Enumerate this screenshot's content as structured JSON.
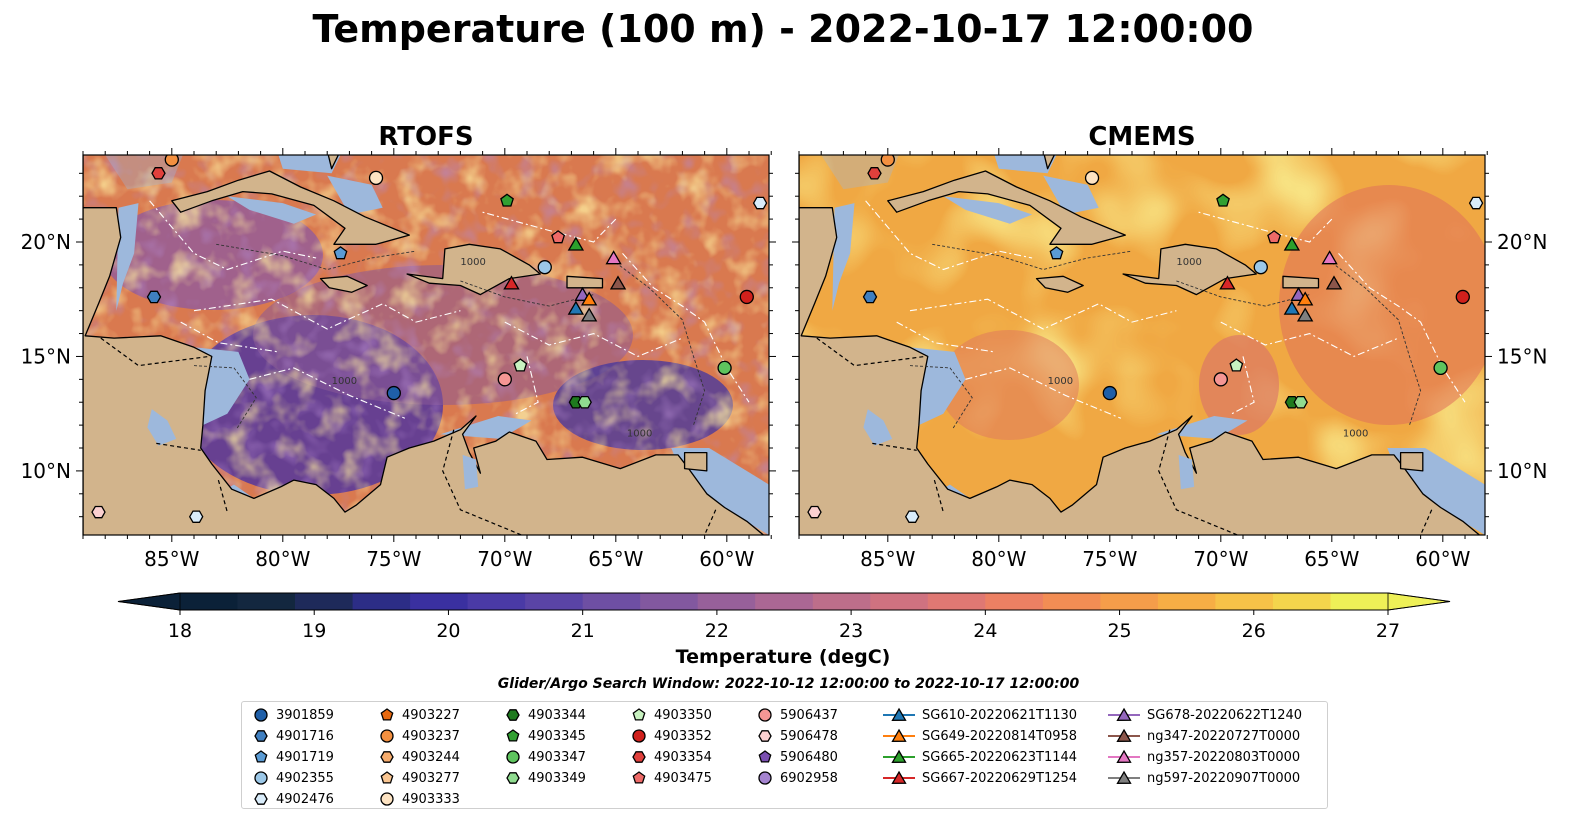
{
  "figure": {
    "title": "Temperature (100 m) - 2022-10-17 12:00:00",
    "panels": [
      {
        "title": "RTOFS",
        "style": "rtofs"
      },
      {
        "title": "CMEMS",
        "style": "cmems"
      }
    ],
    "lat_ticks": [
      "20°N",
      "15°N",
      "10°N"
    ],
    "lon_ticks": [
      "85°W",
      "80°W",
      "75°W",
      "70°W",
      "65°W",
      "60°W"
    ],
    "colorbar": {
      "label": "Temperature (degC)",
      "ticks": [
        "18",
        "19",
        "20",
        "21",
        "22",
        "23",
        "24",
        "25",
        "26",
        "27"
      ],
      "range": [
        18,
        27
      ],
      "extend": "both",
      "colors": [
        "#0b2138",
        "#13273f",
        "#1e2a5a",
        "#2c2d86",
        "#3a30a0",
        "#4a3aa6",
        "#5a44a6",
        "#6e4fa3",
        "#82589f",
        "#97609a",
        "#ab6794",
        "#bd6e8a",
        "#cf7280",
        "#df7873",
        "#ec8063",
        "#f28d54",
        "#f59d4a",
        "#f7ae45",
        "#f7c248",
        "#f4d54c",
        "#eef057"
      ]
    },
    "bathymetry_label": "1000",
    "search_window": "Glider/Argo Search Window: 2022-10-12 12:00:00 to 2022-10-17 12:00:00"
  },
  "legend": [
    {
      "label": "3901859",
      "marker": "circle",
      "color": "#1f5fa8"
    },
    {
      "label": "4901716",
      "marker": "hexagon",
      "color": "#3f7fc0"
    },
    {
      "label": "4901719",
      "marker": "pentagon",
      "color": "#5a9bd4"
    },
    {
      "label": "4902355",
      "marker": "circle",
      "color": "#9cc8e8"
    },
    {
      "label": "4902476",
      "marker": "hexagon",
      "color": "#d9ecfa"
    },
    {
      "label": "4903227",
      "marker": "pentagon",
      "color": "#e8690f"
    },
    {
      "label": "4903237",
      "marker": "circle",
      "color": "#f39040"
    },
    {
      "label": "4903244",
      "marker": "hexagon",
      "color": "#f7ad6e"
    },
    {
      "label": "4903277",
      "marker": "pentagon",
      "color": "#fac692"
    },
    {
      "label": "4903333",
      "marker": "circle",
      "color": "#fde3c2"
    },
    {
      "label": "4903344",
      "marker": "hexagon",
      "color": "#1e7a1e"
    },
    {
      "label": "4903345",
      "marker": "pentagon",
      "color": "#32a032"
    },
    {
      "label": "4903347",
      "marker": "circle",
      "color": "#5ec45e"
    },
    {
      "label": "4903349",
      "marker": "hexagon",
      "color": "#90dc90"
    },
    {
      "label": "4903350",
      "marker": "pentagon",
      "color": "#c8f2c0"
    },
    {
      "label": "4903352",
      "marker": "circle",
      "color": "#d0201c"
    },
    {
      "label": "4903354",
      "marker": "hexagon",
      "color": "#e0403c"
    },
    {
      "label": "4903475",
      "marker": "pentagon",
      "color": "#ee6a68"
    },
    {
      "label": "5906437",
      "marker": "circle",
      "color": "#f59694"
    },
    {
      "label": "5906478",
      "marker": "hexagon",
      "color": "#fbd0d0"
    },
    {
      "label": "5906480",
      "marker": "pentagon",
      "color": "#7a4fb0"
    },
    {
      "label": "6902958",
      "marker": "circle",
      "color": "#a584d0"
    },
    {
      "label": "SG610-20220621T1130",
      "marker": "triangle-line",
      "color": "#1f77b4"
    },
    {
      "label": "SG649-20220814T0958",
      "marker": "triangle-line",
      "color": "#ff7f0e"
    },
    {
      "label": "SG665-20220623T1144",
      "marker": "triangle-line",
      "color": "#2ca02c"
    },
    {
      "label": "SG667-20220629T1254",
      "marker": "triangle-line",
      "color": "#d62728"
    },
    {
      "label": "SG678-20220622T1240",
      "marker": "triangle-line",
      "color": "#9467bd"
    },
    {
      "label": "ng347-20220727T0000",
      "marker": "triangle-line",
      "color": "#8c564b"
    },
    {
      "label": "ng357-20220803T0000",
      "marker": "triangle-line",
      "color": "#e377c2"
    },
    {
      "label": "ng597-20220907T0000",
      "marker": "triangle-line",
      "color": "#7f7f7f"
    }
  ],
  "platforms": [
    {
      "label": "4903237",
      "lon": -85.0,
      "lat": 23.6
    },
    {
      "label": "4903354",
      "lon": -85.6,
      "lat": 23.0
    },
    {
      "label": "4903333",
      "lon": -75.8,
      "lat": 22.8
    },
    {
      "label": "4903345",
      "lon": -69.9,
      "lat": 21.8
    },
    {
      "label": "4902476",
      "lon": -58.5,
      "lat": 21.7
    },
    {
      "label": "SG665-20220623T1144",
      "lon": -66.8,
      "lat": 19.9
    },
    {
      "label": "4903475",
      "lon": -67.6,
      "lat": 20.2
    },
    {
      "label": "4901719",
      "lon": -77.4,
      "lat": 19.5
    },
    {
      "label": "ng357-20220803T0000",
      "lon": -65.1,
      "lat": 19.3
    },
    {
      "label": "4902355",
      "lon": -68.2,
      "lat": 18.9
    },
    {
      "label": "SG667-20220629T1254",
      "lon": -69.7,
      "lat": 18.2
    },
    {
      "label": "ng347-20220727T0000",
      "lon": -64.9,
      "lat": 18.2
    },
    {
      "label": "SG678-20220622T1240",
      "lon": -66.5,
      "lat": 17.7
    },
    {
      "label": "SG649-20220814T0958",
      "lon": -66.2,
      "lat": 17.5
    },
    {
      "label": "4901716",
      "lon": -85.8,
      "lat": 17.6
    },
    {
      "label": "4903352",
      "lon": -59.1,
      "lat": 17.6
    },
    {
      "label": "SG610-20220621T1130",
      "lon": -66.8,
      "lat": 17.1
    },
    {
      "label": "ng597-20220907T0000",
      "lon": -66.2,
      "lat": 16.8
    },
    {
      "label": "4903350",
      "lon": -69.3,
      "lat": 14.6
    },
    {
      "label": "5906437",
      "lon": -70.0,
      "lat": 14.0
    },
    {
      "label": "4903347",
      "lon": -60.1,
      "lat": 14.5
    },
    {
      "label": "3901859",
      "lon": -75.0,
      "lat": 13.4
    },
    {
      "label": "4903344",
      "lon": -66.8,
      "lat": 13.0
    },
    {
      "label": "4903349",
      "lon": -66.4,
      "lat": 13.0
    },
    {
      "label": "5906478",
      "lon": -88.3,
      "lat": 8.2
    },
    {
      "label": "4902476",
      "lon": -83.9,
      "lat": 8.0
    }
  ]
}
